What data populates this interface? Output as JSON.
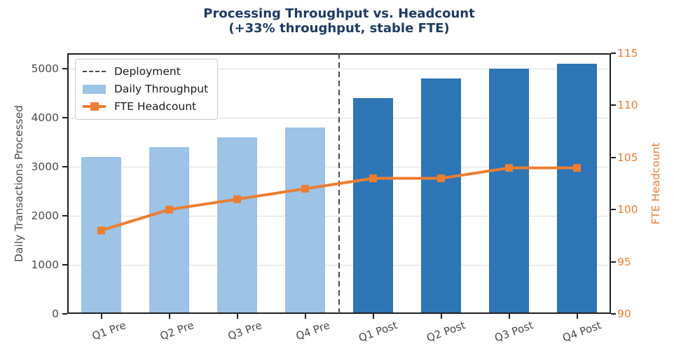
{
  "title": {
    "line1": "Processing Throughput vs. Headcount",
    "line2": "(+33% throughput, stable FTE)"
  },
  "legend": [
    {
      "label": "Deployment",
      "swatch": "dashed-line"
    },
    {
      "label": "Daily Throughput",
      "swatch": "patch"
    },
    {
      "label": "FTE Headcount",
      "swatch": "line-with-square-marker"
    }
  ],
  "chart_data": {
    "type": "bar",
    "subtype": "combo-bar-line-dual-axis",
    "title": "Processing Throughput vs. Headcount (+33% throughput, stable FTE)",
    "categories": [
      "Q1 Pre",
      "Q2 Pre",
      "Q3 Pre",
      "Q4 Pre",
      "Q1 Post",
      "Q2 Post",
      "Q3 Post",
      "Q4 Post"
    ],
    "series": [
      {
        "name": "Daily Throughput",
        "type": "bar",
        "axis": "left",
        "values": [
          3200,
          3400,
          3600,
          3800,
          4400,
          4800,
          5000,
          5100
        ],
        "split_index": 4,
        "note": "bars before split_index are light blue (Pre), after are dark blue (Post)"
      },
      {
        "name": "FTE Headcount",
        "type": "line",
        "axis": "right",
        "marker": "square",
        "values": [
          98,
          100,
          101,
          102,
          103,
          103,
          104,
          104
        ]
      }
    ],
    "left_axis": {
      "label": "Daily Transactions Processed",
      "ticks": [
        0,
        1000,
        2000,
        3000,
        4000,
        5000
      ],
      "lim": [
        0,
        5315
      ]
    },
    "right_axis": {
      "label": "FTE Headcount",
      "ticks": [
        90,
        95,
        100,
        105,
        110,
        115
      ],
      "lim": [
        90,
        115
      ]
    },
    "annotations": [
      {
        "type": "vline",
        "label": "Deployment",
        "x_index": 3.5,
        "style": "dashed"
      }
    ],
    "grid": "horizontal",
    "legend_position": "upper-left"
  },
  "colors": {
    "pre_bar": "#9DC3E6",
    "post_bar": "#2E75B5",
    "orange": "#ED7D31",
    "title": "#1F3A64",
    "axis_text": "#4A4A4A",
    "grid": "#DCDCDC",
    "spine": "#1F1F1F",
    "deployment": "#4A4A4A",
    "legend_border": "#CCCCCC"
  }
}
